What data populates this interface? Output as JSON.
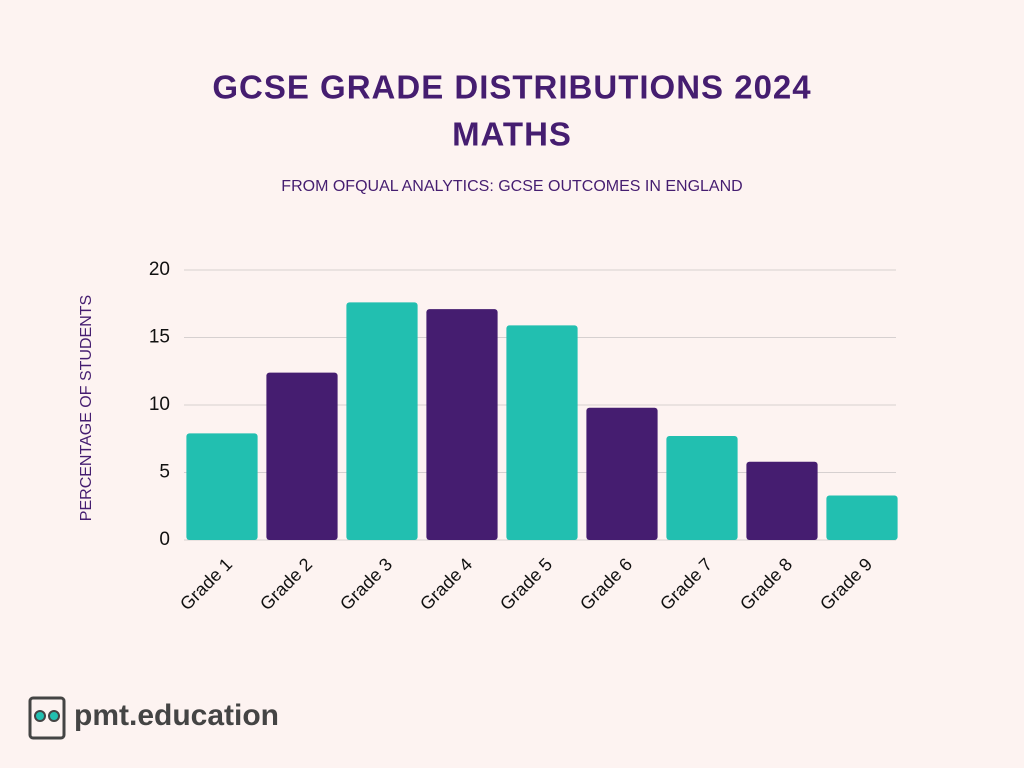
{
  "chart_data": {
    "type": "bar",
    "title": [
      "GCSE GRADE DISTRIBUTIONS 2024",
      "MATHS"
    ],
    "subtitle": "FROM OFQUAL ANALYTICS: GCSE OUTCOMES IN ENGLAND",
    "ylabel": "PERCENTAGE OF STUDENTS",
    "categories": [
      "Grade 1",
      "Grade 2",
      "Grade 3",
      "Grade 4",
      "Grade 5",
      "Grade 6",
      "Grade 7",
      "Grade 8",
      "Grade 9"
    ],
    "values": [
      7.9,
      12.4,
      17.6,
      17.1,
      15.9,
      9.8,
      7.7,
      5.8,
      3.3
    ],
    "colors": [
      "#22bfb0",
      "#451d70",
      "#22bfb0",
      "#451d70",
      "#22bfb0",
      "#451d70",
      "#22bfb0",
      "#451d70",
      "#22bfb0"
    ],
    "ylim": [
      0,
      20
    ],
    "yticks": [
      0,
      5,
      10,
      15,
      20
    ],
    "grid": true
  },
  "brand": "pmt.education"
}
